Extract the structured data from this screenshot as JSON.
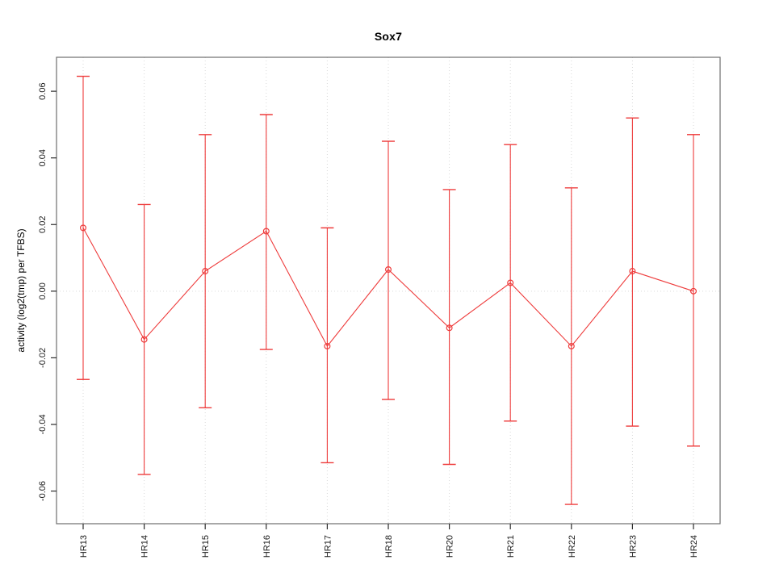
{
  "page": {
    "title": "Sox7"
  },
  "chart_data": {
    "type": "scatter",
    "title": "Sox7",
    "xlabel": "",
    "ylabel": "activity (log2(tmp) per TFBS)",
    "categories": [
      "HR13",
      "HR14",
      "HR15",
      "HR16",
      "HR17",
      "HR18",
      "HR20",
      "HR21",
      "HR22",
      "HR23",
      "HR24"
    ],
    "series": [
      {
        "name": "Sox7",
        "values": [
          0.019,
          -0.0145,
          0.006,
          0.018,
          -0.0165,
          0.0065,
          -0.011,
          0.0025,
          -0.0165,
          0.006,
          0.0
        ],
        "upper": [
          0.0645,
          0.026,
          0.047,
          0.053,
          0.019,
          0.045,
          0.0305,
          0.044,
          0.031,
          0.052,
          0.047
        ],
        "lower": [
          -0.0265,
          -0.055,
          -0.035,
          -0.0175,
          -0.0515,
          -0.0325,
          -0.052,
          -0.039,
          -0.064,
          -0.0405,
          -0.0465
        ]
      }
    ],
    "ylim": [
      -0.0698,
      0.0702
    ],
    "yticks": [
      -0.06,
      -0.04,
      -0.02,
      0,
      0.02,
      0.04,
      0.06
    ],
    "ytick_labels": [
      "-0.06",
      "-0.04",
      "-0.02",
      "0.00",
      "0.02",
      "0.04",
      "0.06"
    ],
    "legend": null,
    "marker": "open-circle",
    "error_bars": true,
    "grid": {
      "vertical_dotted_at_categories": true,
      "horizontal_dotted_at_zero": true
    },
    "colors": {
      "series": "#ee3b3b",
      "grid": "#d9d9d9",
      "frame": "#6e6e6e",
      "tick": "#2b2b2b",
      "text": "#000000"
    }
  }
}
